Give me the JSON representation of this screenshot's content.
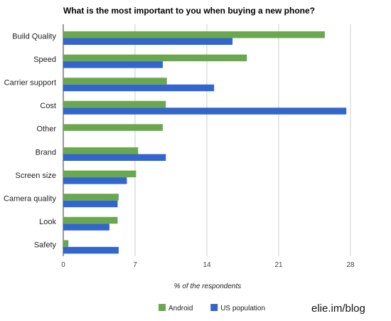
{
  "chart_data": {
    "type": "bar",
    "orientation": "horizontal",
    "title": "What is the most important to you when buying a new phone?",
    "xlabel": "% of the respondents",
    "ylabel": "",
    "categories": [
      "Build Quality",
      "Speed",
      "Carrier support",
      "Cost",
      "Other",
      "Brand",
      "Screen size",
      "Camera quality",
      "Look",
      "Safety"
    ],
    "series": [
      {
        "name": "Android",
        "color": "#6aa84f",
        "values": [
          25.5,
          17.9,
          10.1,
          10.0,
          9.7,
          7.3,
          7.1,
          5.4,
          5.3,
          0.5
        ]
      },
      {
        "name": "US population",
        "color": "#3366cc",
        "values": [
          16.5,
          9.7,
          14.7,
          27.6,
          0,
          10.0,
          6.2,
          5.3,
          4.5,
          5.4
        ]
      }
    ],
    "xlim": [
      0,
      28
    ],
    "xticks": [
      0,
      7,
      14,
      21,
      28
    ],
    "grid": true,
    "legend_position": "bottom"
  },
  "watermark": "elie.im/blog"
}
